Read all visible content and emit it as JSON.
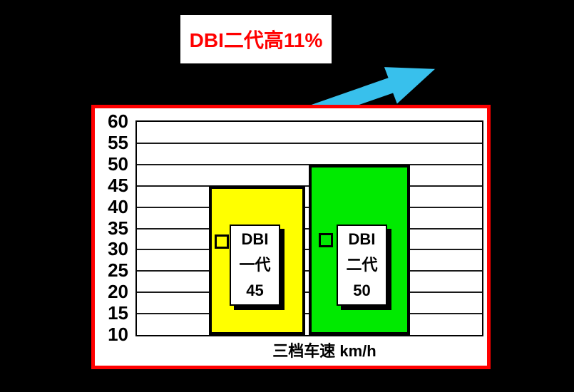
{
  "colors": {
    "background": "#000000",
    "accent_red": "#FF0000",
    "arrow": "#38C0EC",
    "bar_yellow": "#FFFF00",
    "bar_green": "#00EA00",
    "text_black": "#000000",
    "chart_bg": "#FFFFFF"
  },
  "title": {
    "text": "DBI二代高11%"
  },
  "chart_data": {
    "type": "bar",
    "title": "DBI二代高11%",
    "categories": [
      "DBI一代",
      "DBI二代"
    ],
    "values": [
      45,
      50
    ],
    "bar_colors": [
      "#FFFF00",
      "#00EA00"
    ],
    "bar_labels": [
      {
        "lines": [
          "DBI",
          "一代",
          "45"
        ]
      },
      {
        "lines": [
          "DBI",
          "二代",
          "50"
        ]
      }
    ],
    "xlabel": "三档车速 km/h",
    "ylabel": "",
    "ylim": [
      10,
      60
    ],
    "ytick_interval": 5,
    "yticks": [
      60,
      55,
      50,
      45,
      40,
      35,
      30,
      25,
      20,
      15,
      10
    ],
    "grid": "horizontal",
    "legend_position": "none",
    "annotation": {
      "text": "DBI二代高11%",
      "arrow_direction": "up-right"
    }
  }
}
